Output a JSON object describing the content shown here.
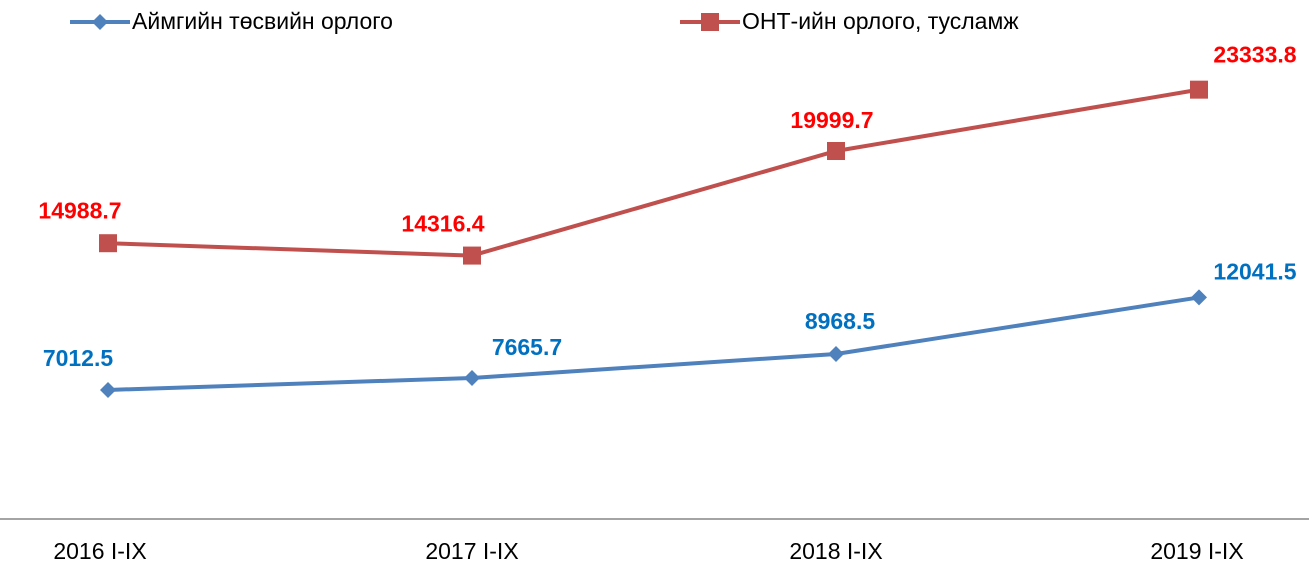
{
  "chart_data": {
    "type": "line",
    "categories": [
      "2016 I-IX",
      "2017 I-IX",
      "2018 I-IX",
      "2019  I-IX"
    ],
    "series": [
      {
        "name": "Аймгийн төсвийн орлого",
        "color": "#4f81bd",
        "label_color": "#0070c0",
        "marker": "diamond",
        "values": [
          7012.5,
          7665.7,
          8968.5,
          12041.5
        ]
      },
      {
        "name": "ОНТ-ийн орлого, тусламж",
        "color": "#c0504d",
        "label_color": "#ff0000",
        "marker": "square",
        "values": [
          14988.7,
          14316.4,
          19999.7,
          23333.8
        ]
      }
    ],
    "ylim": [
      0,
      25000
    ],
    "legend": "top"
  }
}
